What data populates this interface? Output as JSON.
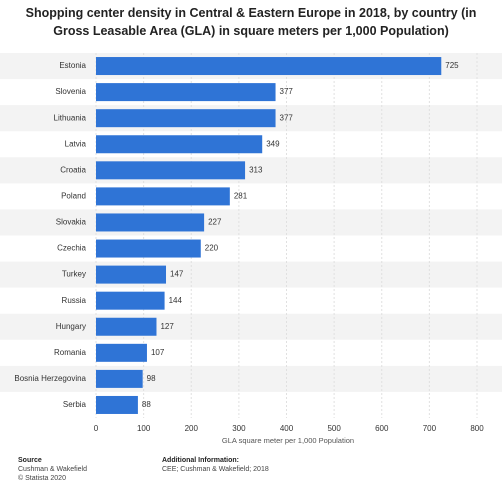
{
  "chart_data": {
    "type": "hbar",
    "title": "Shopping center density in Central & Eastern Europe in 2018, by country (in Gross Leasable Area (GLA) in square meters per 1,000 Population)",
    "x_label": "GLA square meter per 1,000 Population",
    "categories": [
      "Estonia",
      "Slovenia",
      "Lithuania",
      "Latvia",
      "Croatia",
      "Poland",
      "Slovakia",
      "Czechia",
      "Turkey",
      "Russia",
      "Hungary",
      "Romania",
      "Bosnia Herzegovina",
      "Serbia"
    ],
    "values": [
      725,
      377,
      377,
      349,
      313,
      281,
      227,
      220,
      147,
      144,
      127,
      107,
      98,
      88
    ],
    "color": "#2f74d6",
    "xlim": [
      0,
      800
    ],
    "xticks": [
      0,
      100,
      200,
      300,
      400,
      500,
      600,
      700,
      800
    ],
    "grid": true,
    "footer": {
      "source_label": "Source",
      "source": "Cushman & Wakefield",
      "copyright": "© Statista 2020",
      "additional_label": "Additional Information:",
      "additional": "CEE; Cushman & Wakefield; 2018"
    }
  }
}
